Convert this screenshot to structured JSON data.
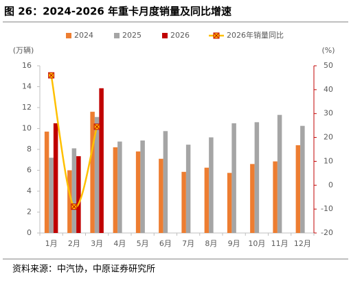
{
  "chart_data": {
    "type": "bar",
    "title": "图 26：2024-2026 年重卡月度销量及同比增速",
    "source": "资料来源：中汽协，中原证券研究所",
    "y_label": "(万辆)",
    "y2_label": "(%)",
    "categories": [
      "1月",
      "2月",
      "3月",
      "4月",
      "5月",
      "6月",
      "7月",
      "8月",
      "9月",
      "10月",
      "11月",
      "12月"
    ],
    "series": [
      {
        "name": "2024",
        "color": "#ed7d31",
        "values": [
          9.7,
          6.0,
          11.6,
          8.2,
          7.8,
          7.1,
          5.85,
          6.25,
          5.75,
          6.6,
          6.85,
          8.4
        ]
      },
      {
        "name": "2025",
        "color": "#a5a5a5",
        "values": [
          7.2,
          8.1,
          11.1,
          8.75,
          8.85,
          9.75,
          8.45,
          9.15,
          10.5,
          10.6,
          11.3,
          10.25
        ]
      },
      {
        "name": "2026",
        "color": "#c00000",
        "values": [
          10.5,
          7.35,
          13.85,
          null,
          null,
          null,
          null,
          null,
          null,
          null,
          null,
          null
        ]
      },
      {
        "name": "2026年销量同比",
        "type": "line",
        "axis": "y2",
        "color": "#ffc000",
        "marker_color": "#c00000",
        "values": [
          46,
          -9,
          24.5,
          null,
          null,
          null,
          null,
          null,
          null,
          null,
          null,
          null
        ]
      }
    ],
    "ylim": [
      0,
      16
    ],
    "yticks": [
      0,
      2,
      4,
      6,
      8,
      10,
      12,
      14,
      16
    ],
    "y2lim": [
      -20,
      50
    ],
    "y2ticks": [
      -20,
      -10,
      0,
      10,
      20,
      30,
      40,
      50
    ],
    "y2_color": "#c00000",
    "grid": false
  }
}
